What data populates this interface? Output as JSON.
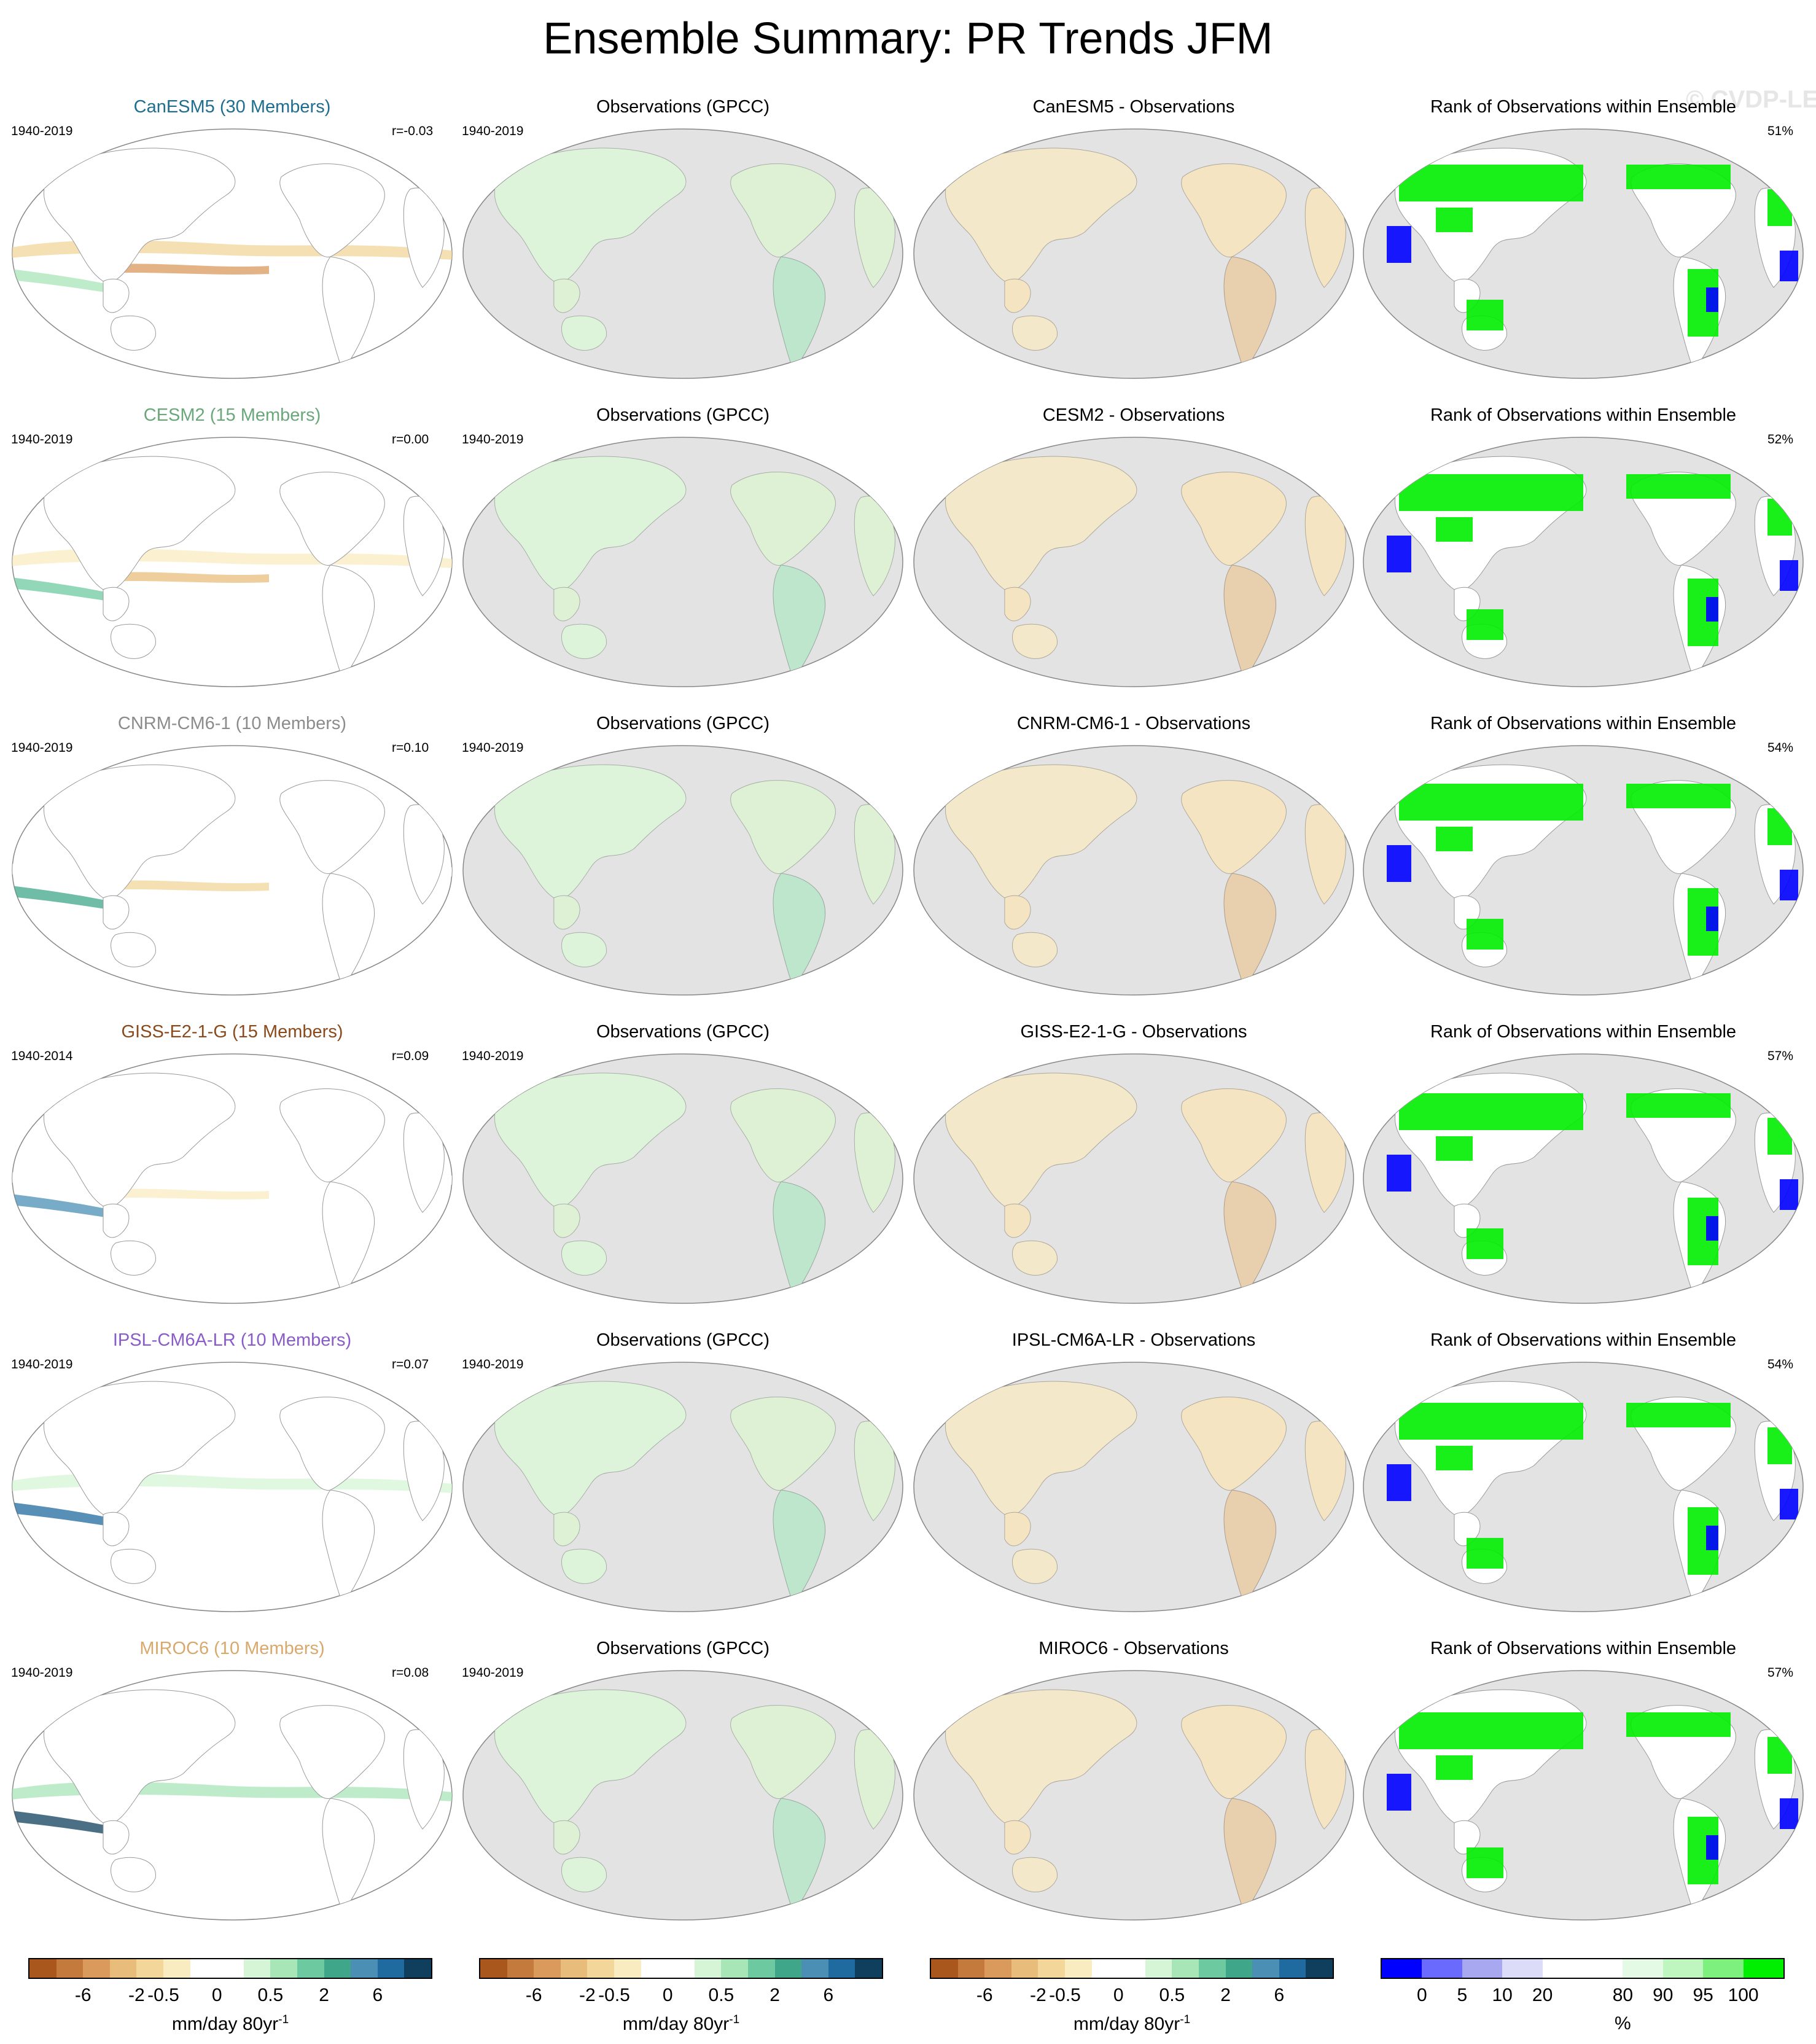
{
  "title": "Ensemble Summary: PR Trends JFM",
  "watermark": "© CVDP-LE",
  "rows": [
    {
      "model_title": "CanESM5 (30 Members)",
      "model_color": "#1f6e8f",
      "model_period": "1940-2019",
      "correlation": "r=-0.03",
      "obs_title": "Observations (GPCC)",
      "obs_period": "1940-2019",
      "diff_title": "CanESM5 - Observations",
      "rank_title": "Rank of Observations within Ensemble",
      "rank_pct": "51%"
    },
    {
      "model_title": "CESM2 (15 Members)",
      "model_color": "#6aa77a",
      "model_period": "1940-2019",
      "correlation": "r=0.00",
      "obs_title": "Observations (GPCC)",
      "obs_period": "1940-2019",
      "diff_title": "CESM2 - Observations",
      "rank_title": "Rank of Observations within Ensemble",
      "rank_pct": "52%"
    },
    {
      "model_title": "CNRM-CM6-1 (10 Members)",
      "model_color": "#8c8c8c",
      "model_period": "1940-2019",
      "correlation": "r=0.10",
      "obs_title": "Observations (GPCC)",
      "obs_period": "1940-2019",
      "diff_title": "CNRM-CM6-1 - Observations",
      "rank_title": "Rank of Observations within Ensemble",
      "rank_pct": "54%"
    },
    {
      "model_title": "GISS-E2-1-G (15 Members)",
      "model_color": "#8b4a1c",
      "model_period": "1940-2014",
      "correlation": "r=0.09",
      "obs_title": "Observations (GPCC)",
      "obs_period": "1940-2019",
      "diff_title": "GISS-E2-1-G - Observations",
      "rank_title": "Rank of Observations within Ensemble",
      "rank_pct": "57%"
    },
    {
      "model_title": "IPSL-CM6A-LR (10 Members)",
      "model_color": "#8a5cc7",
      "model_period": "1940-2019",
      "correlation": "r=0.07",
      "obs_title": "Observations (GPCC)",
      "obs_period": "1940-2019",
      "diff_title": "IPSL-CM6A-LR - Observations",
      "rank_title": "Rank of Observations within Ensemble",
      "rank_pct": "54%"
    },
    {
      "model_title": "MIROC6 (10 Members)",
      "model_color": "#d9a86c",
      "model_period": "1940-2019",
      "correlation": "r=0.08",
      "obs_title": "Observations (GPCC)",
      "obs_period": "1940-2019",
      "diff_title": "MIROC6 - Observations",
      "rank_title": "Rank of Observations within Ensemble",
      "rank_pct": "57%"
    }
  ],
  "colorbars": [
    {
      "colors": [
        "#a9571c",
        "#c47a3c",
        "#d99a5c",
        "#e8bd7c",
        "#f2d69a",
        "#f9ecc0",
        "#ffffff",
        "#ffffff",
        "#d6f5d6",
        "#a8e6b8",
        "#6cc9a0",
        "#3fa68a",
        "#4b8fb5",
        "#1f6a9e",
        "#0f3f5c"
      ],
      "tick_labels": [
        "-6",
        "-2",
        "-0.5",
        "0",
        "0.5",
        "2",
        "6"
      ],
      "unit": "mm/day 80yr",
      "unit_sup": "-1"
    },
    {
      "colors": [
        "#a9571c",
        "#c47a3c",
        "#d99a5c",
        "#e8bd7c",
        "#f2d69a",
        "#f9ecc0",
        "#ffffff",
        "#ffffff",
        "#d6f5d6",
        "#a8e6b8",
        "#6cc9a0",
        "#3fa68a",
        "#4b8fb5",
        "#1f6a9e",
        "#0f3f5c"
      ],
      "tick_labels": [
        "-6",
        "-2",
        "-0.5",
        "0",
        "0.5",
        "2",
        "6"
      ],
      "unit": "mm/day 80yr",
      "unit_sup": "-1"
    },
    {
      "colors": [
        "#a9571c",
        "#c47a3c",
        "#d99a5c",
        "#e8bd7c",
        "#f2d69a",
        "#f9ecc0",
        "#ffffff",
        "#ffffff",
        "#d6f5d6",
        "#a8e6b8",
        "#6cc9a0",
        "#3fa68a",
        "#4b8fb5",
        "#1f6a9e",
        "#0f3f5c"
      ],
      "tick_labels": [
        "-6",
        "-2",
        "-0.5",
        "0",
        "0.5",
        "2",
        "6"
      ],
      "unit": "mm/day 80yr",
      "unit_sup": "-1"
    },
    {
      "colors": [
        "#0000ff",
        "#6a6aff",
        "#a8a8f0",
        "#dcdcf8",
        "#ffffff",
        "#ffffff",
        "#e4fae4",
        "#bff5bf",
        "#7ef07e",
        "#00ee00"
      ],
      "tick_labels": [
        "0",
        "5",
        "10",
        "20",
        "80",
        "90",
        "95",
        "100"
      ],
      "unit": "%",
      "unit_sup": ""
    }
  ]
}
